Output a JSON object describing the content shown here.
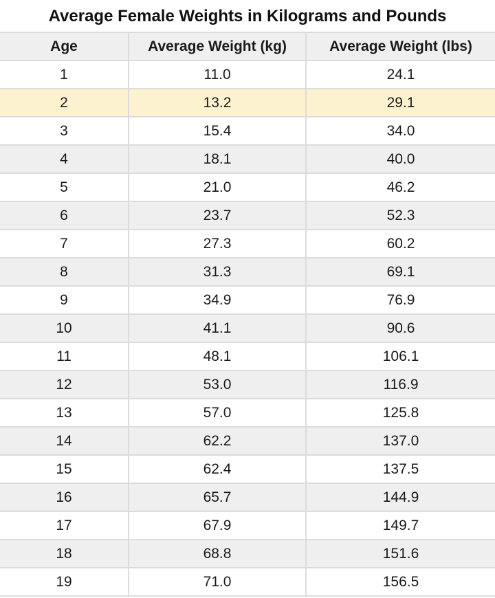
{
  "chart_data": {
    "type": "table",
    "title": "Average Female Weights in Kilograms and Pounds",
    "columns": [
      "Age",
      "Average Weight (kg)",
      "Average Weight (lbs)"
    ],
    "rows": [
      [
        "1",
        "11.0",
        "24.1"
      ],
      [
        "2",
        "13.2",
        "29.1"
      ],
      [
        "3",
        "15.4",
        "34.0"
      ],
      [
        "4",
        "18.1",
        "40.0"
      ],
      [
        "5",
        "21.0",
        "46.2"
      ],
      [
        "6",
        "23.7",
        "52.3"
      ],
      [
        "7",
        "27.3",
        "60.2"
      ],
      [
        "8",
        "31.3",
        "69.1"
      ],
      [
        "9",
        "34.9",
        "76.9"
      ],
      [
        "10",
        "41.1",
        "90.6"
      ],
      [
        "11",
        "48.1",
        "106.1"
      ],
      [
        "12",
        "53.0",
        "116.9"
      ],
      [
        "13",
        "57.0",
        "125.8"
      ],
      [
        "14",
        "62.2",
        "137.0"
      ],
      [
        "15",
        "62.4",
        "137.5"
      ],
      [
        "16",
        "65.7",
        "144.9"
      ],
      [
        "17",
        "67.9",
        "149.7"
      ],
      [
        "18",
        "68.8",
        "151.6"
      ],
      [
        "19",
        "71.0",
        "156.5"
      ]
    ],
    "highlighted_row": 1,
    "colors": {
      "header": "#efefef",
      "stripe": "#efefef",
      "highlight": "#fdf2cf",
      "grid": "#dcdcdc"
    }
  }
}
